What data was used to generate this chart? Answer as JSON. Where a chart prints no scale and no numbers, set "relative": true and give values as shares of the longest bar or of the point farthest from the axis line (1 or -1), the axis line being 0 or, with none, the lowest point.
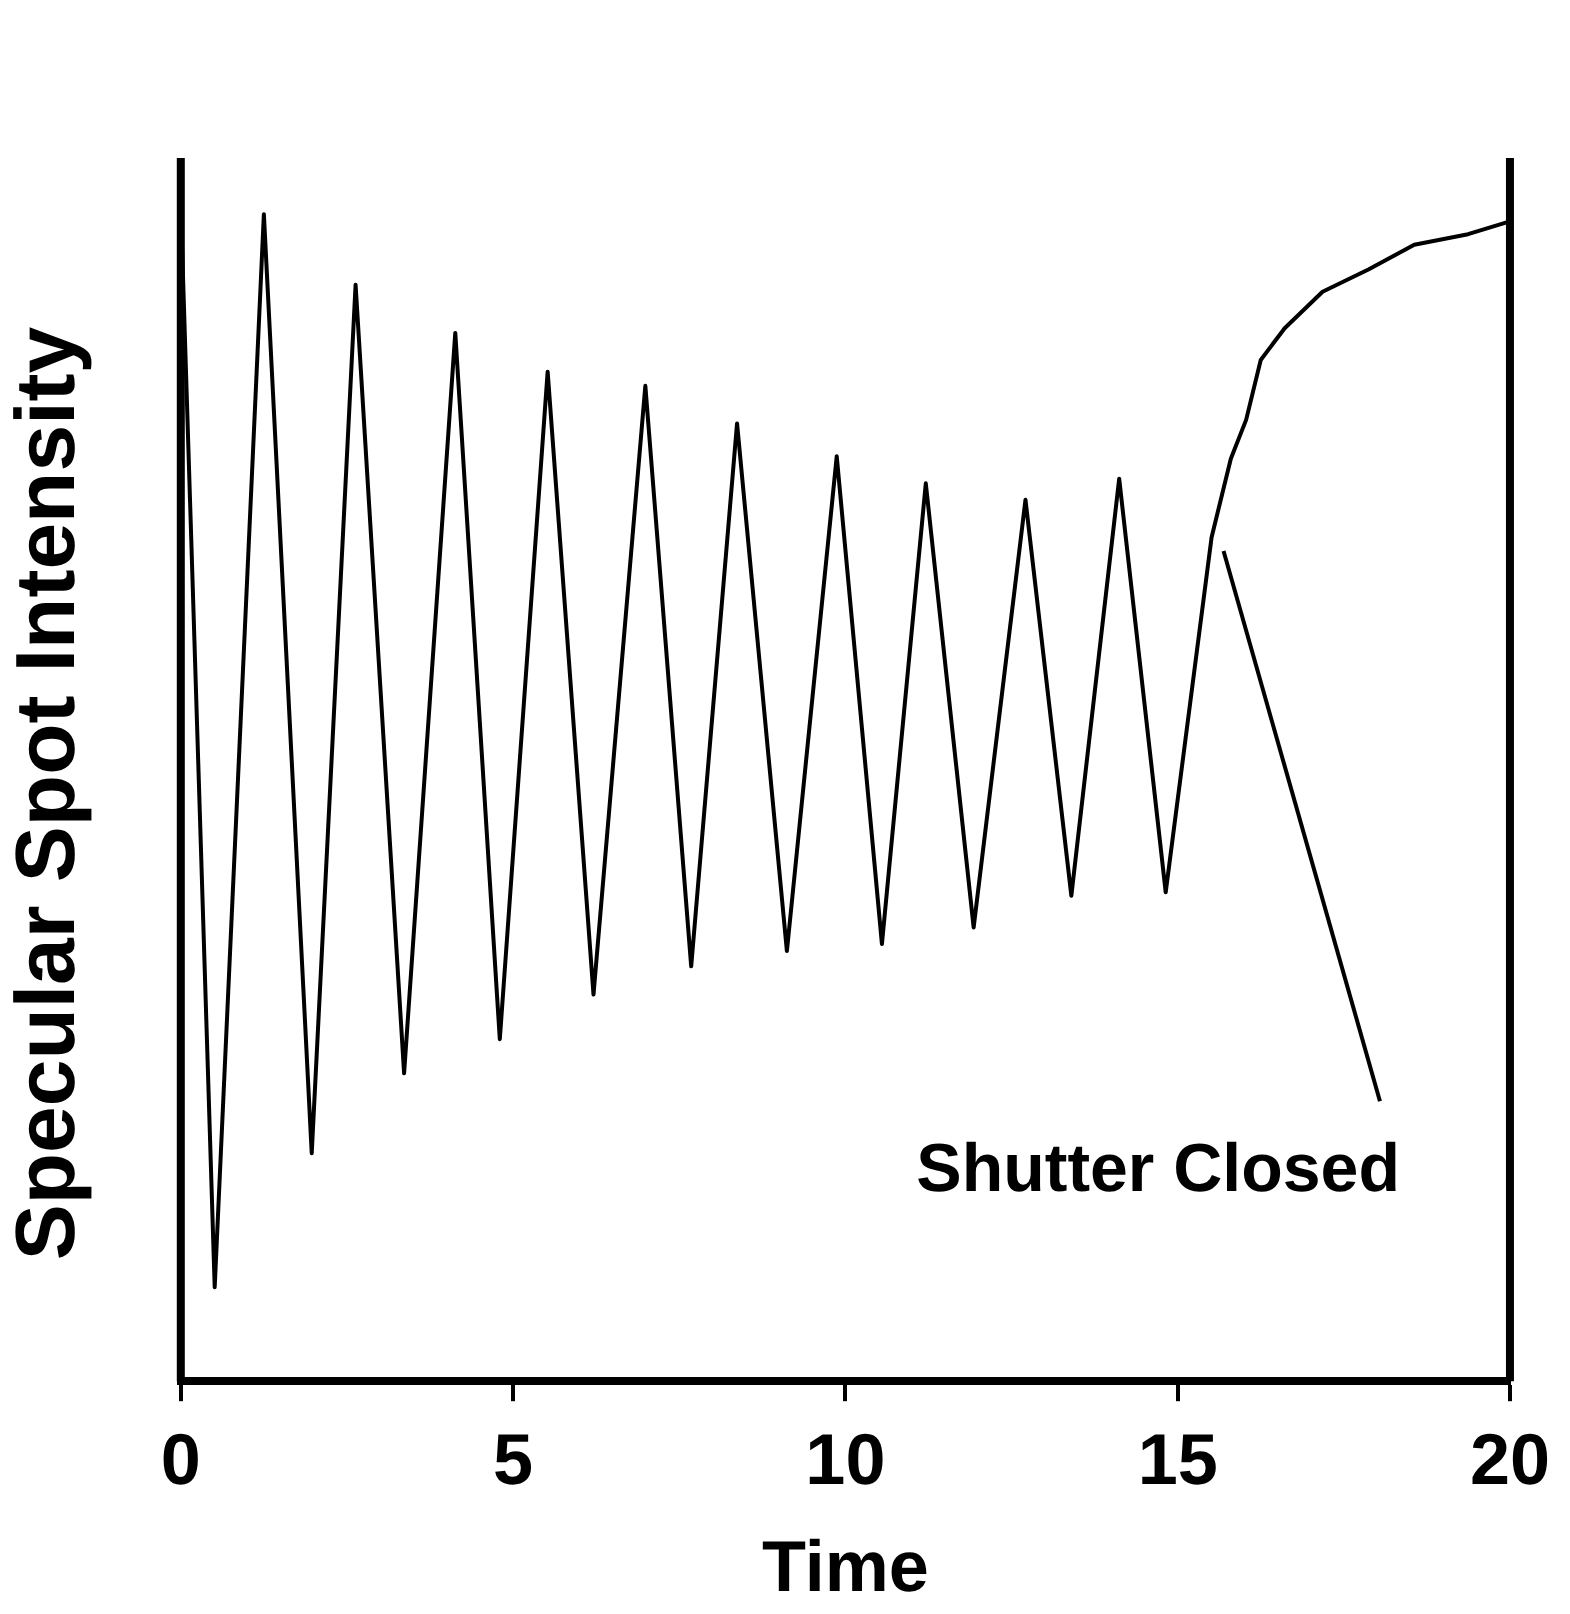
{
  "chart_data": {
    "type": "line",
    "xlabel": "Time",
    "ylabel": "Specular Spot Intensity",
    "relative": true,
    "grid": false,
    "legend": false,
    "marker": "none",
    "line_style": "solid",
    "xlim": [
      0,
      20
    ],
    "xticks": [
      0,
      5,
      10,
      15,
      20
    ],
    "x": [
      0,
      0.51,
      1.25,
      1.97,
      2.63,
      3.36,
      4.13,
      4.8,
      5.52,
      6.21,
      6.99,
      7.68,
      8.37,
      9.12,
      9.87,
      10.55,
      11.21,
      11.93,
      12.71,
      13.4,
      14.12,
      14.82,
      15.51,
      15.8,
      16.03,
      16.25,
      16.61,
      17.18,
      17.87,
      18.56,
      19.37,
      19.95
    ],
    "series": [
      {
        "color": "#000000",
        "values": [
          1.0,
          0.08,
          0.993,
          0.194,
          0.933,
          0.262,
          0.892,
          0.291,
          0.859,
          0.329,
          0.847,
          0.353,
          0.815,
          0.366,
          0.787,
          0.372,
          0.764,
          0.386,
          0.75,
          0.413,
          0.768,
          0.416,
          0.718,
          0.785,
          0.818,
          0.869,
          0.896,
          0.927,
          0.946,
          0.967,
          0.976,
          0.986
        ]
      }
    ],
    "annotations": [
      {
        "text": "Shutter Closed",
        "x": 15.6,
        "y": 0.72
      }
    ]
  }
}
